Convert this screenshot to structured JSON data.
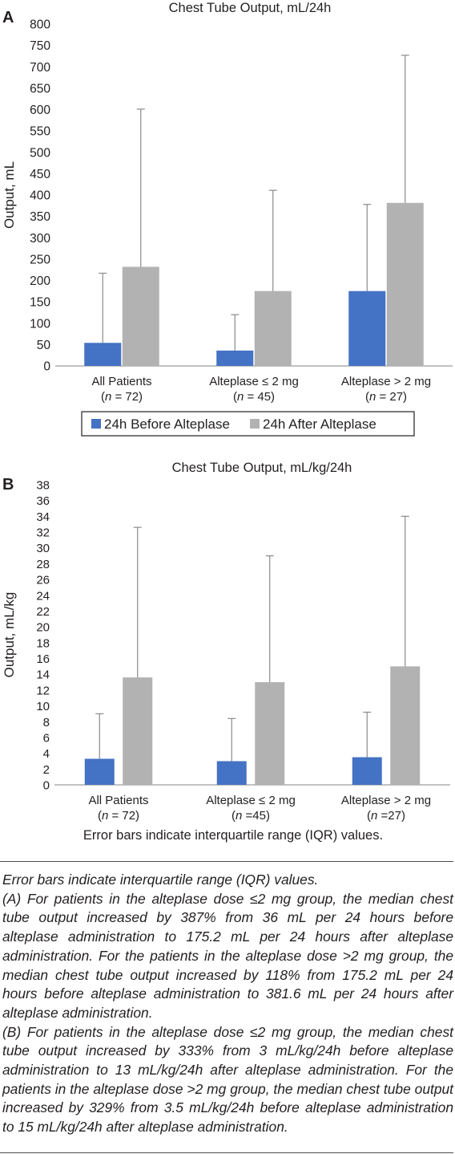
{
  "chart_data": [
    {
      "panel_label": "A",
      "type": "bar",
      "title": "Chest Tube Output, mL/24h",
      "ylabel": "Output, mL",
      "ylim": [
        0,
        800
      ],
      "ytick_step": 50,
      "categories": [
        "All Patients",
        "Alteplase ≤ 2 mg",
        "Alteplase > 2 mg"
      ],
      "category_sublabels": [
        "(n = 72)",
        "(n = 45)",
        "(n = 27)"
      ],
      "series": [
        {
          "name": "24h Before Alteplase",
          "color": "#4472c4",
          "values": [
            54,
            36,
            175.2
          ],
          "iqr_upper": [
            217,
            120,
            378
          ]
        },
        {
          "name": "24h After Alteplase",
          "color": "#b2b2b2",
          "values": [
            232,
            175.2,
            381.6
          ],
          "iqr_upper": [
            601,
            411,
            727
          ]
        }
      ],
      "legend_position": "bottom-boxed",
      "grid": false
    },
    {
      "panel_label": "B",
      "type": "bar",
      "title": "Chest Tube Output, mL/kg/24h",
      "ylabel": "Output, mL/kg",
      "ylim": [
        0,
        38
      ],
      "ytick_step": 2,
      "categories": [
        "All Patients",
        "Alteplase ≤ 2 mg",
        "Alteplase > 2 mg"
      ],
      "category_sublabels": [
        "(n = 72)",
        "(n =45)",
        "(n =27)"
      ],
      "series": [
        {
          "color": "#4472c4",
          "values": [
            3.3,
            3,
            3.5
          ],
          "iqr_upper": [
            9,
            8.4,
            9.2
          ]
        },
        {
          "color": "#b2b2b2",
          "values": [
            13.6,
            13,
            15
          ],
          "iqr_upper": [
            32.6,
            29,
            34
          ]
        }
      ],
      "note": "Error bars indicate interquartile range (IQR) values.",
      "grid": false
    }
  ],
  "caption": [
    "Error bars indicate interquartile range (IQR) values.",
    "(A) For patients in the alteplase dose ≤2 mg group, the median chest tube output increased by 387% from 36 mL per 24 hours before alteplase administration to 175.2 mL per 24 hours after alteplase administration. For the patients in the alteplase dose >2 mg group, the median chest tube output increased by 118% from 175.2 mL per 24 hours before alteplase administration to 381.6 mL per 24 hours after alteplase administration.",
    "(B) For patients in the alteplase dose ≤2 mg group, the median chest tube output increased by 333% from 3 mL/kg/24h before alteplase administration to 13 mL/kg/24h after alteplase administration. For the patients in the alteplase dose >2 mg group, the median chest tube output increased by 329% from 3.5 mL/kg/24h before alteplase administration to 15 mL/kg/24h after alteplase administration."
  ]
}
